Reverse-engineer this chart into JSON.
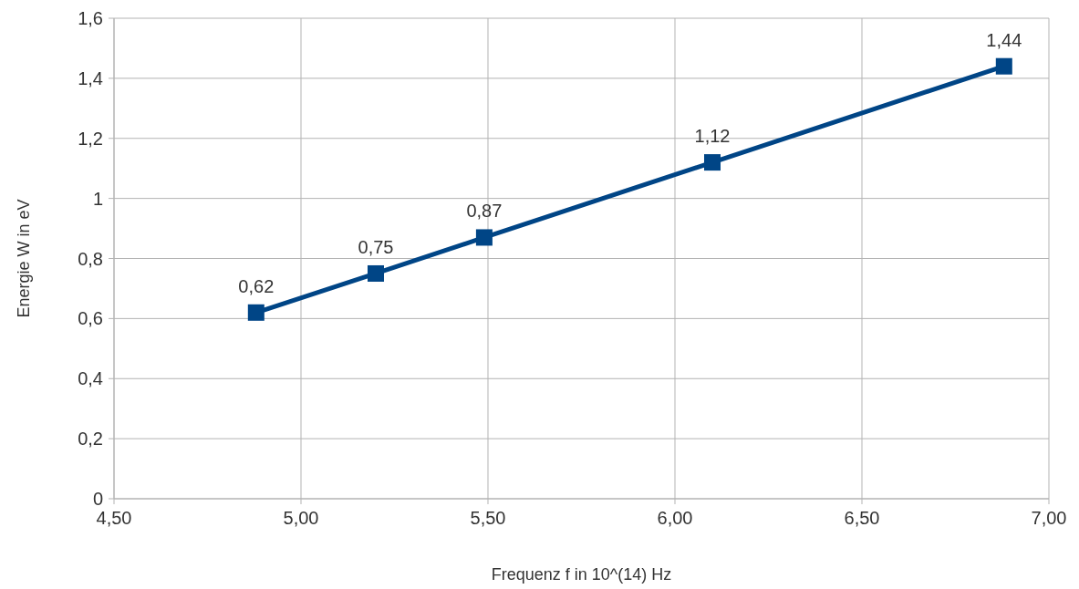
{
  "chart_data": {
    "type": "line",
    "xlabel": "Frequenz f in 10^(14) Hz",
    "ylabel": "Energie W in eV",
    "x": [
      4.88,
      5.2,
      5.49,
      6.1,
      6.88
    ],
    "values": [
      0.62,
      0.75,
      0.87,
      1.12,
      1.44
    ],
    "value_labels": [
      "0,62",
      "0,75",
      "0,87",
      "1,12",
      "1,44"
    ],
    "color": "#004586",
    "marker": "square",
    "line_style": "solid",
    "grid": true,
    "xlim": [
      4.5,
      7
    ],
    "xticks": [
      {
        "value": 4.5,
        "label": "4,50"
      },
      {
        "value": 5,
        "label": "5,00"
      },
      {
        "value": 5.5,
        "label": "5,50"
      },
      {
        "value": 6,
        "label": "6,00"
      },
      {
        "value": 6.5,
        "label": "6,50"
      },
      {
        "value": 7,
        "label": "7,00"
      }
    ],
    "ylim": [
      0,
      1.6
    ],
    "yticks": [
      0,
      {
        "value": 0.2,
        "label": "0,2"
      },
      {
        "value": 0.4,
        "label": "0,4"
      },
      {
        "value": 0.6,
        "label": "0,6"
      },
      {
        "value": 0.8,
        "label": "0,8"
      },
      1,
      {
        "value": 1.2,
        "label": "1,2"
      },
      {
        "value": 1.4,
        "label": "1,4"
      },
      {
        "value": 1.6,
        "label": "1,6"
      }
    ]
  }
}
